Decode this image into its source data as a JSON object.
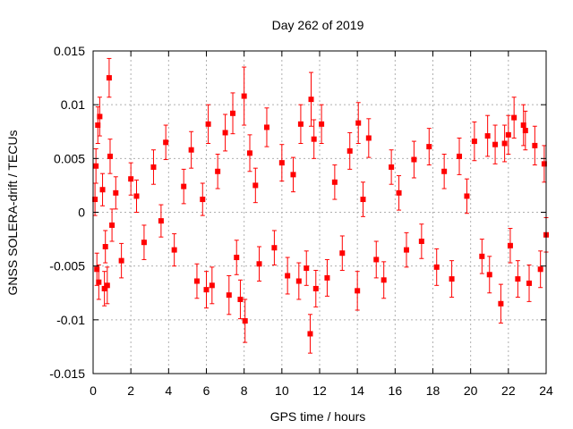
{
  "chart_data": {
    "type": "scatter",
    "title": "Day 262 of 2019",
    "xlabel": "GPS time / hours",
    "ylabel": "GNSS SOLERA-drift / TECUs",
    "xlim": [
      0,
      24
    ],
    "ylim": [
      -0.015,
      0.015
    ],
    "x_ticks": [
      "0",
      "2",
      "4",
      "6",
      "8",
      "10",
      "12",
      "14",
      "16",
      "18",
      "20",
      "22",
      "24"
    ],
    "y_ticks": [
      "-0.015",
      "-0.01",
      "-0.005",
      "0",
      "0.005",
      "0.01",
      "0.015"
    ],
    "grid": true,
    "error_bars": true,
    "color": "#ff0000",
    "series": [
      {
        "x": [
          0.1,
          0.15,
          0.2,
          0.25,
          0.3,
          0.35,
          0.5,
          0.6,
          0.65,
          0.75,
          0.85,
          0.9,
          1.0,
          1.2,
          1.5,
          2.0,
          2.3,
          2.7,
          3.2,
          3.6,
          3.85,
          4.3,
          4.8,
          5.2,
          5.5,
          5.8,
          6.0,
          6.1,
          6.3,
          6.6,
          7.0,
          7.2,
          7.4,
          7.6,
          7.8,
          8.0,
          8.05,
          8.3,
          8.6,
          8.8,
          9.2,
          9.6,
          10.0,
          10.3,
          10.6,
          10.9,
          11.0,
          11.3,
          11.5,
          11.55,
          11.7,
          11.8,
          12.1,
          12.4,
          12.8,
          13.2,
          13.6,
          14.0,
          14.05,
          14.3,
          14.6,
          15.0,
          15.4,
          15.8,
          16.2,
          16.6,
          17.0,
          17.4,
          17.8,
          18.2,
          18.6,
          19.0,
          19.4,
          19.8,
          20.2,
          20.6,
          20.9,
          21.0,
          21.3,
          21.6,
          21.8,
          22.0,
          22.1,
          22.3,
          22.5,
          22.8,
          22.9,
          23.1,
          23.4,
          23.7,
          23.9,
          24.0
        ],
        "y": [
          0.0012,
          0.0043,
          -0.0053,
          0.0081,
          -0.0065,
          0.0089,
          0.0021,
          -0.0071,
          -0.0032,
          -0.0068,
          0.0125,
          0.0052,
          -0.0012,
          0.0018,
          -0.0045,
          0.0031,
          0.0015,
          -0.0028,
          0.0042,
          -0.0008,
          0.0065,
          -0.0035,
          0.0024,
          0.0058,
          -0.0064,
          0.0012,
          -0.0072,
          0.0082,
          -0.0068,
          0.0038,
          0.0074,
          -0.0077,
          0.0092,
          -0.0042,
          -0.0081,
          0.0108,
          -0.0101,
          0.0055,
          0.0025,
          -0.0048,
          0.0079,
          -0.0033,
          0.0046,
          -0.0059,
          0.0035,
          -0.0064,
          0.0082,
          -0.0052,
          -0.0113,
          0.0105,
          0.0068,
          -0.0071,
          0.0082,
          -0.0061,
          0.0028,
          -0.0038,
          0.0057,
          -0.0073,
          0.0083,
          0.0012,
          0.0069,
          -0.0044,
          -0.0063,
          0.0042,
          0.0018,
          -0.0035,
          0.0049,
          -0.0027,
          0.0061,
          -0.0051,
          0.0038,
          -0.0062,
          0.0052,
          0.0015,
          0.0066,
          -0.0041,
          0.0071,
          -0.0058,
          0.0063,
          -0.0085,
          0.0064,
          0.0072,
          -0.0031,
          0.0088,
          -0.0062,
          0.0081,
          0.0076,
          -0.0066,
          0.0062,
          -0.0053,
          0.0045,
          -0.0021
        ],
        "y_err": [
          0.0015,
          0.0016,
          0.0015,
          0.0017,
          0.0016,
          0.0018,
          0.0015,
          0.0016,
          0.0015,
          0.0017,
          0.0018,
          0.0016,
          0.0015,
          0.0015,
          0.0016,
          0.0015,
          0.0015,
          0.0016,
          0.0016,
          0.0015,
          0.0016,
          0.0015,
          0.0016,
          0.0017,
          0.0016,
          0.0015,
          0.0017,
          0.0018,
          0.0017,
          0.0016,
          0.0017,
          0.0018,
          0.0019,
          0.0016,
          0.0018,
          0.0027,
          0.002,
          0.0017,
          0.0016,
          0.0016,
          0.0018,
          0.0016,
          0.0017,
          0.0017,
          0.0016,
          0.0017,
          0.0018,
          0.0016,
          0.0018,
          0.0025,
          0.0018,
          0.0017,
          0.0018,
          0.0017,
          0.0016,
          0.0016,
          0.0017,
          0.0018,
          0.0019,
          0.0016,
          0.0018,
          0.0017,
          0.0017,
          0.0016,
          0.0016,
          0.0016,
          0.0017,
          0.0016,
          0.0017,
          0.0017,
          0.0016,
          0.0017,
          0.0017,
          0.0016,
          0.0018,
          0.0016,
          0.0019,
          0.0017,
          0.0018,
          0.0018,
          0.0017,
          0.0018,
          0.0016,
          0.0019,
          0.0017,
          0.0019,
          0.0018,
          0.0017,
          0.0018,
          0.0017,
          0.0017,
          0.0016
        ]
      }
    ]
  }
}
